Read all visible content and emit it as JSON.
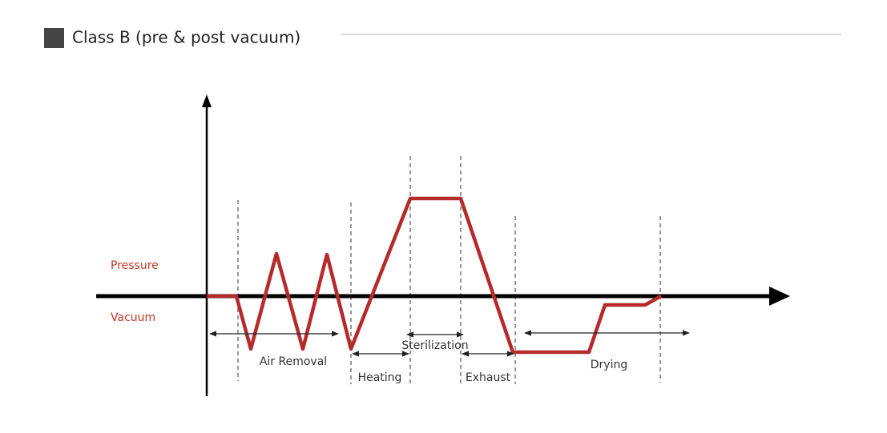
{
  "header": {
    "title": "Class B (pre & post vacuum)"
  },
  "axis_labels": {
    "pressure": "Pressure",
    "vacuum": "Vacuum"
  },
  "phases": [
    {
      "label": "Air Removal"
    },
    {
      "label": "Heating"
    },
    {
      "label": "Sterilization"
    },
    {
      "label": "Exhaust"
    },
    {
      "label": "Drying"
    }
  ]
}
